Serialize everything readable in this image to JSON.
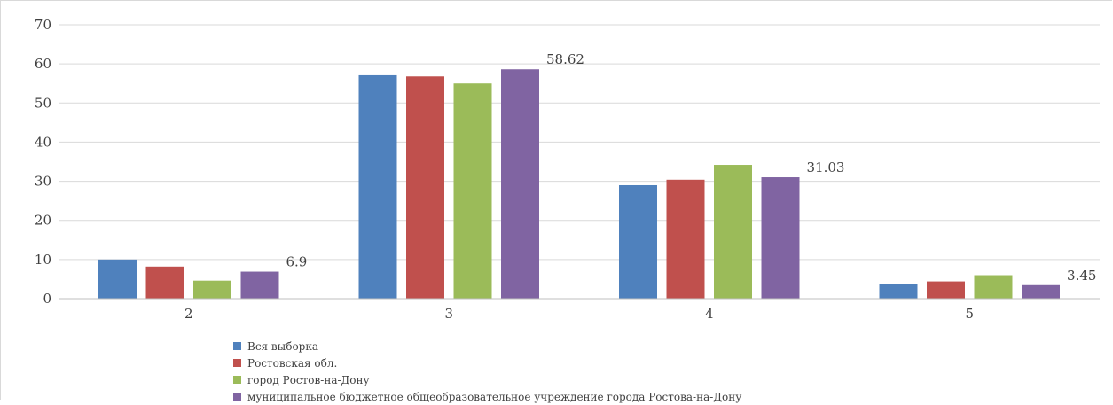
{
  "chart_data": {
    "type": "bar",
    "title": "",
    "xlabel": "",
    "ylabel": "",
    "categories": [
      "2",
      "3",
      "4",
      "5"
    ],
    "ylim": [
      0,
      70
    ],
    "yticks": [
      0,
      10,
      20,
      30,
      40,
      50,
      60,
      70
    ],
    "grid": true,
    "legend_position": "bottom",
    "series": [
      {
        "name": "Вся выборка",
        "color": "#4f81bd",
        "values": [
          10.0,
          57.1,
          29.0,
          3.7
        ]
      },
      {
        "name": "Ростовская обл.",
        "color": "#c0504d",
        "values": [
          8.2,
          56.8,
          30.4,
          4.4
        ]
      },
      {
        "name": "город Ростов-на-Дону",
        "color": "#9bbb59",
        "values": [
          4.6,
          55.0,
          34.2,
          6.0
        ]
      },
      {
        "name": "муниципальное бюджетное общеобразовательное учреждение города Ростова-на-Дону",
        "color": "#8064a2",
        "values": [
          6.9,
          58.62,
          31.03,
          3.45
        ]
      }
    ],
    "data_labels": {
      "series_index": 3,
      "labels": [
        "6.9",
        "58.62",
        "31.03",
        "3.45"
      ]
    }
  }
}
